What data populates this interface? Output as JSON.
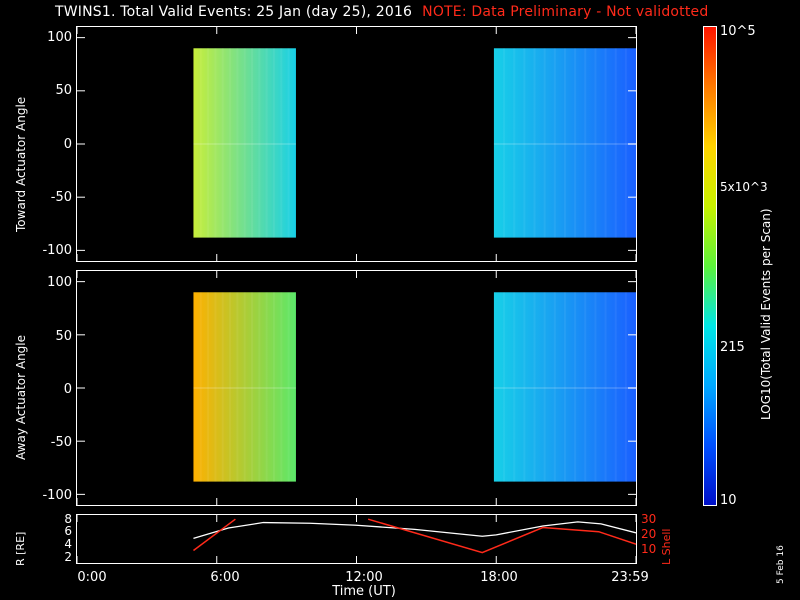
{
  "header": {
    "title": "TWINS1. Total Valid Events: 25 Jan (day  25), 2016",
    "note": "NOTE: Data Preliminary - Not validotted"
  },
  "chart_data": [
    {
      "type": "heatmap",
      "panel": "top",
      "ylabel": "Toward Actuator Angle",
      "yticks": [
        "100",
        "50",
        "0",
        "-50",
        "-100"
      ],
      "ylim": [
        -110,
        110
      ],
      "xlim": [
        0,
        24
      ],
      "data_blocks": [
        {
          "x_start": 5.0,
          "x_end": 9.4,
          "y_start": -88,
          "y_end": 90,
          "level_left": "yellow-green",
          "level_right": "cyan"
        },
        {
          "x_start": 17.9,
          "x_end": 24.0,
          "y_start": -88,
          "y_end": 90,
          "level_left": "cyan",
          "level_right": "blue"
        }
      ]
    },
    {
      "type": "heatmap",
      "panel": "middle",
      "ylabel": "Away Actuator Angle",
      "yticks": [
        "100",
        "50",
        "0",
        "-50",
        "-100"
      ],
      "ylim": [
        -110,
        110
      ],
      "xlim": [
        0,
        24
      ],
      "data_blocks": [
        {
          "x_start": 5.0,
          "x_end": 9.4,
          "y_start": -88,
          "y_end": 90,
          "level_left": "orange",
          "level_right": "green"
        },
        {
          "x_start": 17.9,
          "x_end": 24.0,
          "y_start": -88,
          "y_end": 90,
          "level_left": "cyan",
          "level_right": "blue"
        }
      ]
    },
    {
      "type": "line",
      "panel": "bottom",
      "ylabel_left": "R [RE]",
      "ylabel_right": "L Shell",
      "yticks_left": [
        "8",
        "6",
        "4",
        "2"
      ],
      "yticks_right": [
        "30",
        "20",
        "10"
      ],
      "xlabel": "Time (UT)",
      "xticks": [
        "0:00",
        "6:00",
        "12:00",
        "18:00",
        "23:59"
      ],
      "series": [
        {
          "name": "R",
          "color": "#ffffff",
          "x": [
            5.0,
            6.5,
            8.0,
            10.0,
            12.0,
            14.5,
            17.4,
            18.0,
            20.0,
            21.5,
            22.5,
            24.0
          ],
          "y": [
            5.1,
            6.6,
            7.4,
            7.3,
            7.0,
            6.4,
            5.4,
            5.6,
            6.9,
            7.5,
            7.2,
            5.9
          ]
        },
        {
          "name": "L Shell",
          "color": "#ff2a1a",
          "segments": [
            {
              "x": [
                5.0,
                6.8
              ],
              "y": [
                15,
                30
              ]
            },
            {
              "x": [
                12.5,
                17.4,
                20.0,
                22.4,
                24.0
              ],
              "y": [
                30,
                14,
                26,
                24,
                18
              ]
            }
          ]
        }
      ]
    }
  ],
  "colorbar": {
    "label": "LOG10(Total Valid Events per Scan)",
    "ticks": [
      "10^5",
      "5x10^3",
      "215",
      "10"
    ],
    "colors": [
      "#ff1500",
      "#ff7a00",
      "#ffd200",
      "#c8f200",
      "#5cf23a",
      "#00e6e6",
      "#00a8ff",
      "#0050ff",
      "#0010c8"
    ]
  },
  "footer": {
    "date_stamp": "5 Feb 16"
  }
}
